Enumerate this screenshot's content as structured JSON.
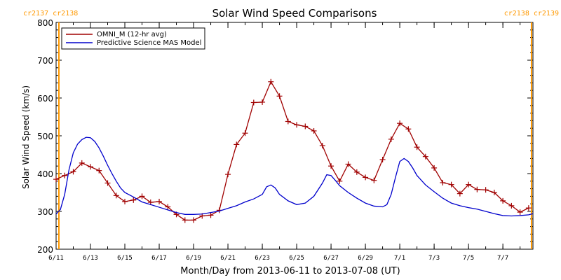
{
  "chart_data": {
    "type": "line",
    "title": "Solar Wind Speed Comparisons",
    "xlabel": "Month/Day from 2013-06-11 to 2013-07-08 (UT)",
    "ylabel": "Solar Wind Speed (km/s)",
    "ylim": [
      200,
      800
    ],
    "yticks": [
      200,
      300,
      400,
      500,
      600,
      700,
      800
    ],
    "xlim": [
      "2013-06-11",
      "2013-07-08 18:00"
    ],
    "xticks": [
      {
        "x": "2013-06-11",
        "label": "6/11"
      },
      {
        "x": "2013-06-13",
        "label": "6/13"
      },
      {
        "x": "2013-06-15",
        "label": "6/15"
      },
      {
        "x": "2013-06-17",
        "label": "6/17"
      },
      {
        "x": "2013-06-19",
        "label": "6/19"
      },
      {
        "x": "2013-06-21",
        "label": "6/21"
      },
      {
        "x": "2013-06-23",
        "label": "6/23"
      },
      {
        "x": "2013-06-25",
        "label": "6/25"
      },
      {
        "x": "2013-06-27",
        "label": "6/27"
      },
      {
        "x": "2013-06-29",
        "label": "6/29"
      },
      {
        "x": "2013-07-01",
        "label": "7/1"
      },
      {
        "x": "2013-07-03",
        "label": "7/3"
      },
      {
        "x": "2013-07-05",
        "label": "7/5"
      },
      {
        "x": "2013-07-07",
        "label": "7/7"
      }
    ],
    "carrington_markers": [
      {
        "x": "2013-06-11",
        "label": "cr2137 cr2138",
        "label_side": "left"
      },
      {
        "x": "2013-07-08 16:00",
        "label": "cr2138 cr2139",
        "label_side": "right"
      }
    ],
    "legend_position": "top-left",
    "grid": false,
    "series": [
      {
        "name": "OMNI_M (12-hr avg)",
        "color": "#a00000",
        "marker": "plus",
        "points": [
          [
            "2013-06-11 00:00",
            385
          ],
          [
            "2013-06-11 12:00",
            395
          ],
          [
            "2013-06-12 00:00",
            405
          ],
          [
            "2013-06-12 12:00",
            428
          ],
          [
            "2013-06-13 00:00",
            418
          ],
          [
            "2013-06-13 12:00",
            408
          ],
          [
            "2013-06-14 00:00",
            375
          ],
          [
            "2013-06-14 12:00",
            342
          ],
          [
            "2013-06-15 00:00",
            326
          ],
          [
            "2013-06-15 12:00",
            330
          ],
          [
            "2013-06-16 00:00",
            340
          ],
          [
            "2013-06-16 12:00",
            324
          ],
          [
            "2013-06-17 00:00",
            326
          ],
          [
            "2013-06-17 12:00",
            312
          ],
          [
            "2013-06-18 00:00",
            292
          ],
          [
            "2013-06-18 12:00",
            277
          ],
          [
            "2013-06-19 00:00",
            277
          ],
          [
            "2013-06-19 12:00",
            288
          ],
          [
            "2013-06-20 00:00",
            290
          ],
          [
            "2013-06-20 12:00",
            303
          ],
          [
            "2013-06-21 00:00",
            398
          ],
          [
            "2013-06-21 12:00",
            477
          ],
          [
            "2013-06-22 00:00",
            507
          ],
          [
            "2013-06-22 12:00",
            588
          ],
          [
            "2013-06-23 00:00",
            589
          ],
          [
            "2013-06-23 12:00",
            643
          ],
          [
            "2013-06-24 00:00",
            605
          ],
          [
            "2013-06-24 12:00",
            538
          ],
          [
            "2013-06-25 00:00",
            529
          ],
          [
            "2013-06-25 12:00",
            525
          ],
          [
            "2013-06-26 00:00",
            513
          ],
          [
            "2013-06-26 12:00",
            474
          ],
          [
            "2013-06-27 00:00",
            420
          ],
          [
            "2013-06-27 12:00",
            380
          ],
          [
            "2013-06-28 00:00",
            425
          ],
          [
            "2013-06-28 12:00",
            404
          ],
          [
            "2013-06-29 00:00",
            390
          ],
          [
            "2013-06-29 12:00",
            382
          ],
          [
            "2013-06-30 00:00",
            437
          ],
          [
            "2013-06-30 12:00",
            491
          ],
          [
            "2013-07-01 00:00",
            533
          ],
          [
            "2013-07-01 12:00",
            518
          ],
          [
            "2013-07-02 00:00",
            470
          ],
          [
            "2013-07-02 12:00",
            445
          ],
          [
            "2013-07-03 00:00",
            415
          ],
          [
            "2013-07-03 12:00",
            376
          ],
          [
            "2013-07-04 00:00",
            371
          ],
          [
            "2013-07-04 12:00",
            347
          ],
          [
            "2013-07-05 00:00",
            371
          ],
          [
            "2013-07-05 12:00",
            358
          ],
          [
            "2013-07-06 00:00",
            357
          ],
          [
            "2013-07-06 12:00",
            350
          ],
          [
            "2013-07-07 00:00",
            328
          ],
          [
            "2013-07-07 12:00",
            315
          ],
          [
            "2013-07-08 00:00",
            298
          ],
          [
            "2013-07-08 12:00",
            309
          ]
        ]
      },
      {
        "name": "Predictive Science MAS Model",
        "color": "#0000cc",
        "marker": "none",
        "points": [
          [
            "2013-06-11 00:00",
            293
          ],
          [
            "2013-06-11 06:00",
            305
          ],
          [
            "2013-06-11 12:00",
            345
          ],
          [
            "2013-06-11 18:00",
            410
          ],
          [
            "2013-06-12 00:00",
            455
          ],
          [
            "2013-06-12 06:00",
            478
          ],
          [
            "2013-06-12 12:00",
            490
          ],
          [
            "2013-06-12 18:00",
            496
          ],
          [
            "2013-06-13 00:00",
            495
          ],
          [
            "2013-06-13 06:00",
            485
          ],
          [
            "2013-06-13 12:00",
            468
          ],
          [
            "2013-06-13 18:00",
            446
          ],
          [
            "2013-06-14 00:00",
            422
          ],
          [
            "2013-06-14 06:00",
            400
          ],
          [
            "2013-06-14 12:00",
            380
          ],
          [
            "2013-06-14 18:00",
            362
          ],
          [
            "2013-06-15 00:00",
            350
          ],
          [
            "2013-06-15 12:00",
            338
          ],
          [
            "2013-06-16 00:00",
            325
          ],
          [
            "2013-06-16 12:00",
            318
          ],
          [
            "2013-06-17 00:00",
            311
          ],
          [
            "2013-06-17 12:00",
            304
          ],
          [
            "2013-06-18 00:00",
            297
          ],
          [
            "2013-06-18 12:00",
            292
          ],
          [
            "2013-06-19 00:00",
            292
          ],
          [
            "2013-06-19 12:00",
            293
          ],
          [
            "2013-06-20 00:00",
            297
          ],
          [
            "2013-06-20 12:00",
            301
          ],
          [
            "2013-06-21 00:00",
            308
          ],
          [
            "2013-06-21 12:00",
            315
          ],
          [
            "2013-06-22 00:00",
            325
          ],
          [
            "2013-06-22 12:00",
            333
          ],
          [
            "2013-06-23 00:00",
            345
          ],
          [
            "2013-06-23 06:00",
            365
          ],
          [
            "2013-06-23 12:00",
            370
          ],
          [
            "2013-06-23 18:00",
            362
          ],
          [
            "2013-06-24 00:00",
            345
          ],
          [
            "2013-06-24 12:00",
            328
          ],
          [
            "2013-06-25 00:00",
            318
          ],
          [
            "2013-06-25 12:00",
            322
          ],
          [
            "2013-06-26 00:00",
            340
          ],
          [
            "2013-06-26 12:00",
            375
          ],
          [
            "2013-06-26 18:00",
            397
          ],
          [
            "2013-06-27 00:00",
            395
          ],
          [
            "2013-06-27 06:00",
            382
          ],
          [
            "2013-06-27 12:00",
            368
          ],
          [
            "2013-06-28 00:00",
            350
          ],
          [
            "2013-06-28 12:00",
            335
          ],
          [
            "2013-06-29 00:00",
            322
          ],
          [
            "2013-06-29 12:00",
            314
          ],
          [
            "2013-06-30 00:00",
            312
          ],
          [
            "2013-06-30 06:00",
            318
          ],
          [
            "2013-06-30 12:00",
            345
          ],
          [
            "2013-06-30 18:00",
            390
          ],
          [
            "2013-07-01 00:00",
            432
          ],
          [
            "2013-07-01 06:00",
            440
          ],
          [
            "2013-07-01 12:00",
            432
          ],
          [
            "2013-07-01 18:00",
            415
          ],
          [
            "2013-07-02 00:00",
            395
          ],
          [
            "2013-07-02 12:00",
            370
          ],
          [
            "2013-07-03 00:00",
            352
          ],
          [
            "2013-07-03 12:00",
            335
          ],
          [
            "2013-07-04 00:00",
            322
          ],
          [
            "2013-07-04 12:00",
            315
          ],
          [
            "2013-07-05 00:00",
            310
          ],
          [
            "2013-07-05 12:00",
            306
          ],
          [
            "2013-07-06 00:00",
            300
          ],
          [
            "2013-07-06 12:00",
            294
          ],
          [
            "2013-07-07 00:00",
            289
          ],
          [
            "2013-07-07 12:00",
            288
          ],
          [
            "2013-07-08 00:00",
            289
          ],
          [
            "2013-07-08 12:00",
            291
          ],
          [
            "2013-07-08 18:00",
            294
          ]
        ]
      }
    ]
  },
  "colors": {
    "axis": "#000000",
    "carrington": "#ff9900",
    "background": "#ffffff"
  }
}
